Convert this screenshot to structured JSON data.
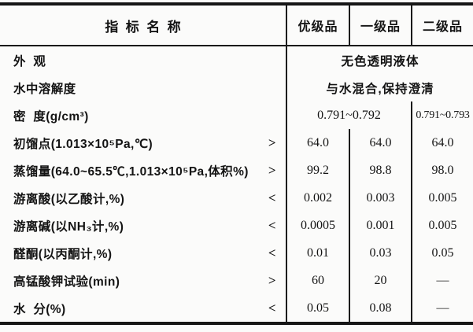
{
  "colors": {
    "ink": "#141414",
    "rule": "#1a1a1a",
    "background": "#fbfbfa"
  },
  "table": {
    "header": {
      "name": "指  标  名  称",
      "grades": [
        "优级品",
        "一级品",
        "二级品"
      ]
    },
    "rows": [
      {
        "label": "外  观",
        "value": "无色透明液体"
      },
      {
        "label": "水中溶解度",
        "value": "与水混合,保持澄清"
      },
      {
        "label": "密  度(g/cm³)",
        "value12": "0.791~0.792",
        "value3": "0.791~0.793"
      },
      {
        "label": "初馏点(1.013×10⁵Pa,℃)",
        "op": ">",
        "values": [
          "64.0",
          "64.0",
          "64.0"
        ]
      },
      {
        "label": "蒸馏量(64.0~65.5℃,1.013×10⁵Pa,体积%)",
        "op": ">",
        "values": [
          "99.2",
          "98.8",
          "98.0"
        ]
      },
      {
        "label": "游离酸(以乙酸计,%)",
        "op": "<",
        "values": [
          "0.002",
          "0.003",
          "0.005"
        ]
      },
      {
        "label": "游离碱(以NH₃计,%)",
        "op": "<",
        "values": [
          "0.0005",
          "0.001",
          "0.005"
        ]
      },
      {
        "label": "醛酮(以丙酮计,%)",
        "op": "<",
        "values": [
          "0.01",
          "0.03",
          "0.05"
        ]
      },
      {
        "label": "高锰酸钾试验(min)",
        "op": ">",
        "values": [
          "60",
          "20",
          "—"
        ]
      },
      {
        "label": "水  分(%)",
        "op": "<",
        "values": [
          "0.05",
          "0.08",
          "—"
        ]
      }
    ]
  }
}
